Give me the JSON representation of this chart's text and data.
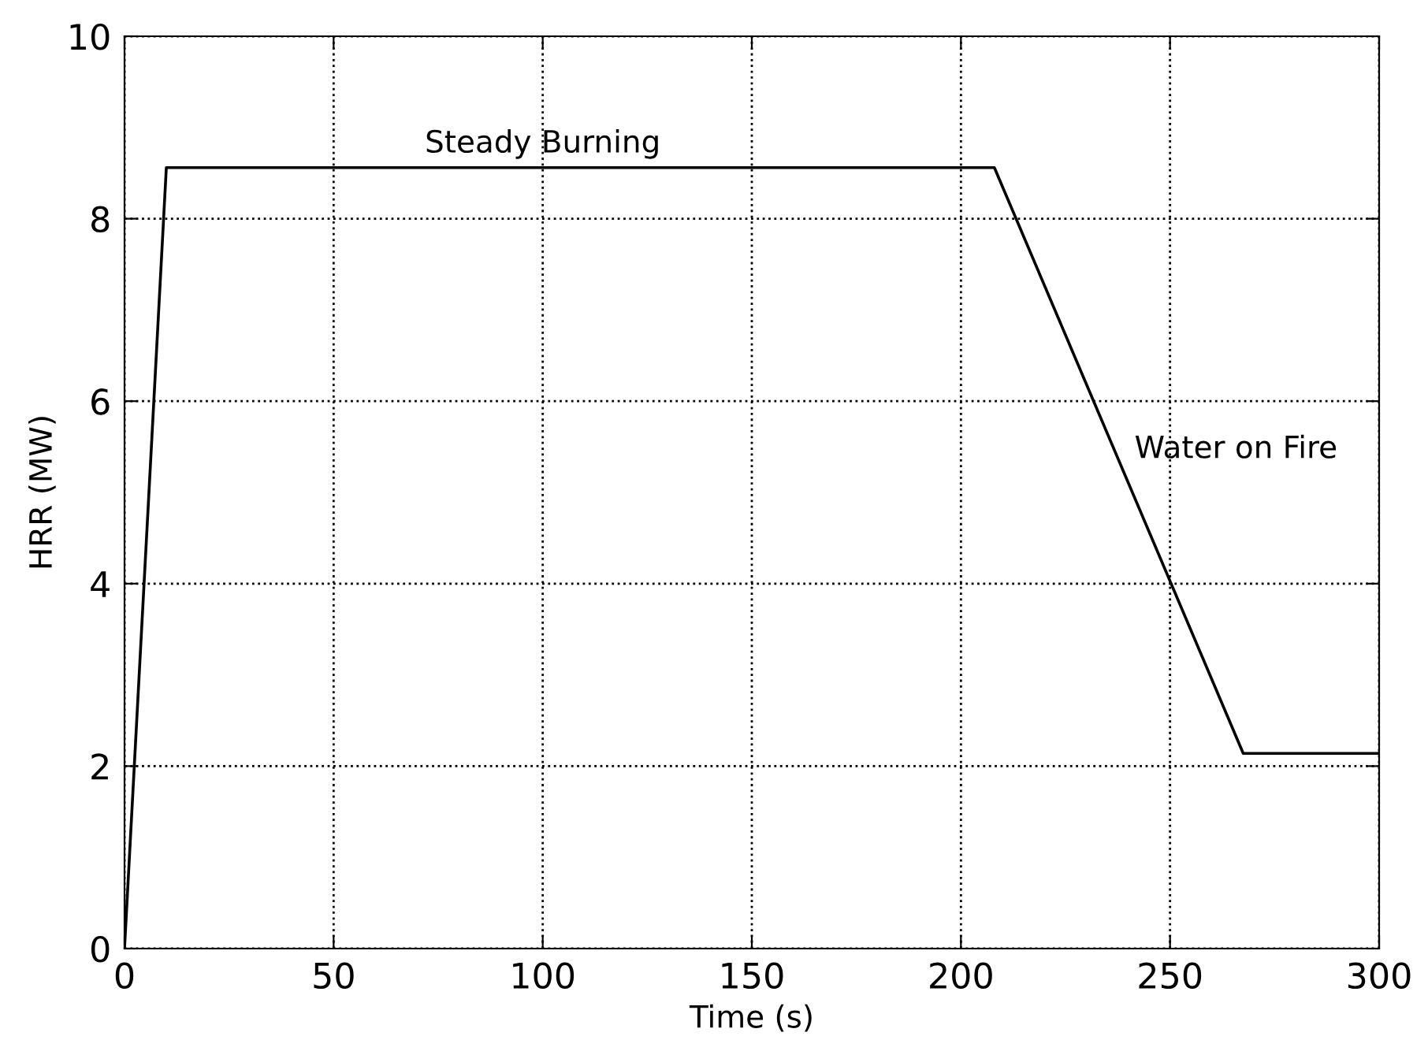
{
  "chart_data": {
    "type": "line",
    "xlabel": "Time (s)",
    "ylabel": "HRR (MW)",
    "series": [
      {
        "color": "#000000",
        "x": [
          0,
          10,
          208,
          267.5,
          300
        ],
        "values": [
          0,
          8.56,
          8.56,
          2.14,
          2.14
        ]
      }
    ],
    "xlim": [
      0,
      300
    ],
    "ylim": [
      0,
      10
    ],
    "xticks": [
      0,
      50,
      100,
      150,
      200,
      250,
      300
    ],
    "yticks": [
      0,
      2,
      4,
      6,
      8,
      10
    ],
    "grid": true,
    "line_style": "solid",
    "marker": "none",
    "annotations": [
      {
        "text": "Steady Burning",
        "x": 100,
        "y": 8.56
      },
      "Water on Fire"
    ]
  }
}
